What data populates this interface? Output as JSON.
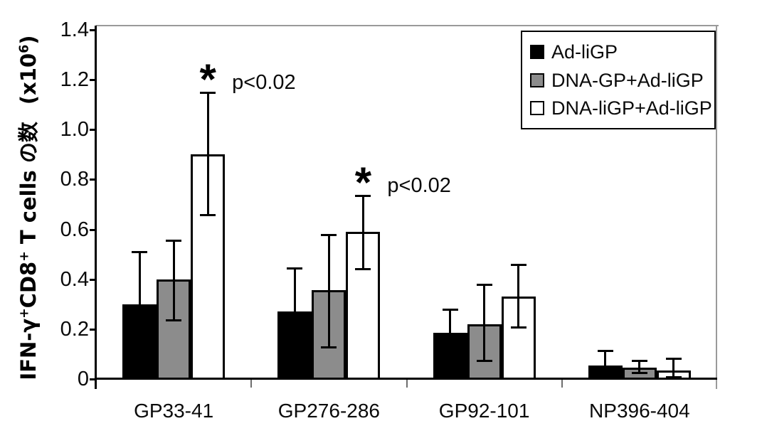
{
  "chart_data": {
    "type": "bar",
    "title": "",
    "xlabel": "",
    "ylabel": "IFN-γ⁺CD8⁺ T cells の数",
    "ylabel_unit": "(x10⁶)",
    "ylabel_segments": [
      {
        "t": "IFN-γ",
        "sup": false
      },
      {
        "t": "+",
        "sup": true
      },
      {
        "t": "CD8",
        "sup": false
      },
      {
        "t": "+",
        "sup": true
      },
      {
        "t": " T cells の数",
        "sup": false
      }
    ],
    "unit_segments": [
      {
        "t": "(x10",
        "sup": false
      },
      {
        "t": "6",
        "sup": true
      },
      {
        "t": ")",
        "sup": false
      }
    ],
    "categories": [
      "GP33-41",
      "GP276-286",
      "GP92-101",
      "NP396-404"
    ],
    "series": [
      {
        "name": "Ad-liGP",
        "color": "#000000",
        "values": [
          0.3,
          0.27,
          0.185,
          0.055
        ],
        "err_up": [
          0.21,
          0.175,
          0.095,
          0.058
        ],
        "err_down": [
          0.2,
          0.17,
          0.09,
          0.05
        ]
      },
      {
        "name": "DNA-GP+Ad-liGP",
        "color": "#8c8c8c",
        "values": [
          0.4,
          0.355,
          0.22,
          0.045
        ],
        "err_up": [
          0.155,
          0.225,
          0.16,
          0.03
        ],
        "err_down": [
          0.165,
          0.23,
          0.15,
          0.022
        ]
      },
      {
        "name": "DNA-liGP+Ad-liGP",
        "color": "#ffffff",
        "values": [
          0.9,
          0.59,
          0.33,
          0.035
        ],
        "err_up": [
          0.25,
          0.145,
          0.13,
          0.048
        ],
        "err_down": [
          0.245,
          0.15,
          0.125,
          0.03
        ]
      }
    ],
    "ylim": [
      0,
      1.4
    ],
    "yticks": [
      "0",
      "0.2",
      "0.4",
      "0.6",
      "0.8",
      "1.0",
      "1.2",
      "1.4"
    ],
    "grid": false,
    "error_bars": true,
    "legend_position": "top-right",
    "annotations": [
      {
        "category": "GP33-41",
        "series": "DNA-liGP+Ad-liGP",
        "symbol": "*",
        "text": "p<0.02"
      },
      {
        "category": "GP276-286",
        "series": "DNA-liGP+Ad-liGP",
        "symbol": "*",
        "text": "p<0.02"
      }
    ]
  }
}
